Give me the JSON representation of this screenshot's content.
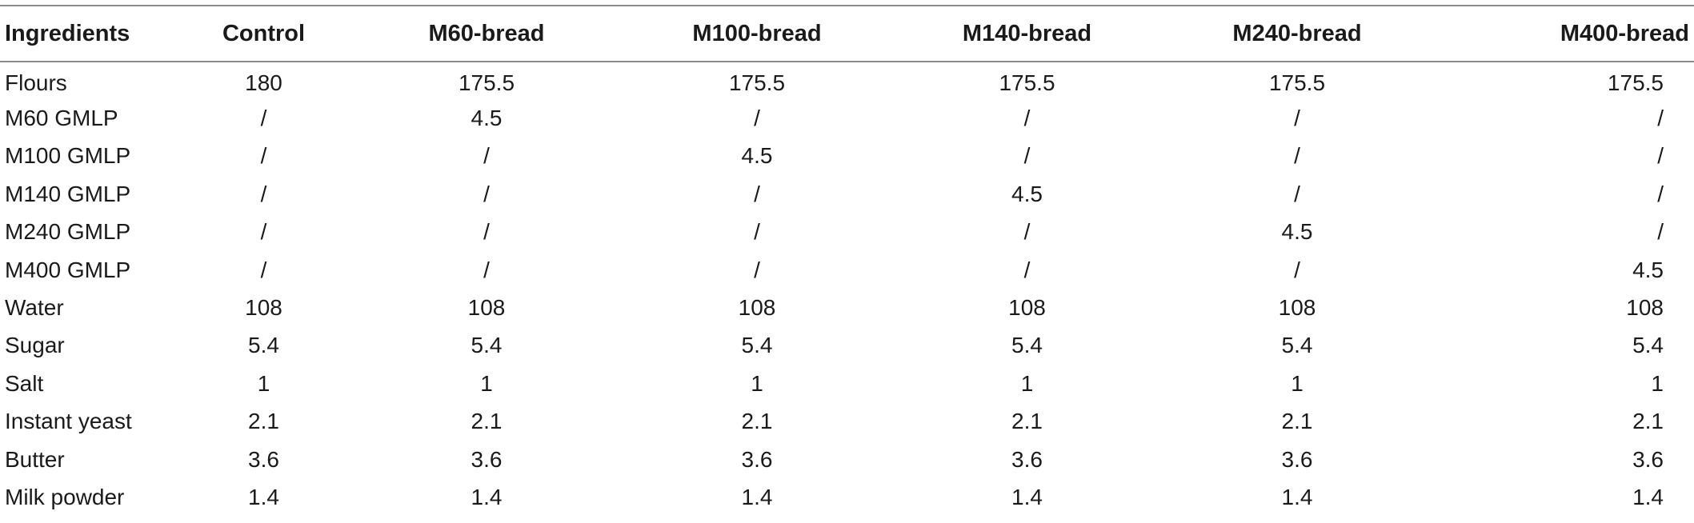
{
  "table": {
    "headers": [
      "Ingredients",
      "Control",
      "M60-bread",
      "M100-bread",
      "M140-bread",
      "M240-bread",
      "M400-bread"
    ],
    "rows": [
      [
        "Flours",
        "180",
        "175.5",
        "175.5",
        "175.5",
        "175.5",
        "175.5"
      ],
      [
        "M60 GMLP",
        "/",
        "4.5",
        "/",
        "/",
        "/",
        "/"
      ],
      [
        "M100 GMLP",
        "/",
        "/",
        "4.5",
        "/",
        "/",
        "/"
      ],
      [
        "M140 GMLP",
        "/",
        "/",
        "/",
        "4.5",
        "/",
        "/"
      ],
      [
        "M240 GMLP",
        "/",
        "/",
        "/",
        "/",
        "4.5",
        "/"
      ],
      [
        "M400 GMLP",
        "/",
        "/",
        "/",
        "/",
        "/",
        "4.5"
      ],
      [
        "Water",
        "108",
        "108",
        "108",
        "108",
        "108",
        "108"
      ],
      [
        "Sugar",
        "5.4",
        "5.4",
        "5.4",
        "5.4",
        "5.4",
        "5.4"
      ],
      [
        "Salt",
        "1",
        "1",
        "1",
        "1",
        "1",
        "1"
      ],
      [
        "Instant yeast",
        "2.1",
        "2.1",
        "2.1",
        "2.1",
        "2.1",
        "2.1"
      ],
      [
        "Butter",
        "3.6",
        "3.6",
        "3.6",
        "3.6",
        "3.6",
        "3.6"
      ],
      [
        "Milk powder",
        "1.4",
        "1.4",
        "1.4",
        "1.4",
        "1.4",
        "1.4"
      ]
    ]
  }
}
